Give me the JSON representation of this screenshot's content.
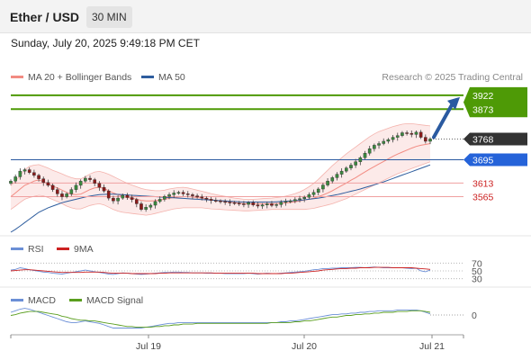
{
  "header": {
    "title": "Ether / USD",
    "timeframe": "30 MIN"
  },
  "datetime": "Sunday, July 20, 2025 9:49:18 PM CET",
  "legend_main": [
    {
      "label": "MA 20 + Bollinger Bands",
      "color": "#f28b82"
    },
    {
      "label": "MA 50",
      "color": "#2e5d9e"
    }
  ],
  "credit": "Research © 2025 Trading Central",
  "legend_rsi": [
    {
      "label": "RSI",
      "color": "#6b8fd6"
    },
    {
      "label": "9MA",
      "color": "#cc2222"
    }
  ],
  "legend_macd": [
    {
      "label": "MACD",
      "color": "#6b8fd6"
    },
    {
      "label": "MACD Signal",
      "color": "#5a9e1e"
    }
  ],
  "chart_data": {
    "type": "candlestick",
    "price_range": [
      3440,
      3950
    ],
    "x_ticks": [
      "Jul 19",
      "Jul 20",
      "Jul 21"
    ],
    "current_price": 3768,
    "levels": [
      {
        "value": 3922,
        "label": "3922",
        "kind": "resistance",
        "color": "#4e9a06"
      },
      {
        "value": 3873,
        "label": "3873",
        "kind": "resistance",
        "color": "#4e9a06"
      },
      {
        "value": 3768,
        "label": "3768",
        "kind": "last",
        "color": "#333333"
      },
      {
        "value": 3695,
        "label": "3695",
        "kind": "pivot",
        "color": "#2563d9"
      },
      {
        "value": 3613,
        "label": "3613",
        "kind": "support",
        "color": "#e06666"
      },
      {
        "value": 3565,
        "label": "3565",
        "kind": "support",
        "color": "#e06666"
      }
    ],
    "close": [
      3620,
      3635,
      3655,
      3660,
      3650,
      3640,
      3628,
      3615,
      3605,
      3590,
      3575,
      3565,
      3575,
      3590,
      3605,
      3620,
      3630,
      3625,
      3612,
      3598,
      3585,
      3560,
      3550,
      3560,
      3570,
      3562,
      3555,
      3540,
      3520,
      3528,
      3535,
      3548,
      3556,
      3566,
      3572,
      3578,
      3580,
      3575,
      3572,
      3568,
      3564,
      3560,
      3556,
      3552,
      3550,
      3548,
      3546,
      3544,
      3542,
      3540,
      3538,
      3544,
      3536,
      3532,
      3536,
      3540,
      3534,
      3537,
      3545,
      3548,
      3550,
      3555,
      3558,
      3563,
      3572,
      3580,
      3592,
      3606,
      3620,
      3632,
      3644,
      3655,
      3666,
      3676,
      3688,
      3702,
      3718,
      3734,
      3746,
      3752,
      3760,
      3766,
      3774,
      3780,
      3790,
      3788,
      3784,
      3792,
      3774,
      3760,
      3768
    ],
    "ma20": [
      3565,
      3578,
      3592,
      3605,
      3612,
      3620,
      3624,
      3618,
      3610,
      3602,
      3596,
      3588,
      3580,
      3574,
      3572,
      3574,
      3582,
      3590,
      3596,
      3598,
      3594,
      3586,
      3578,
      3572,
      3566,
      3562,
      3560,
      3556,
      3552,
      3550,
      3550,
      3551,
      3553,
      3556,
      3559,
      3562,
      3564,
      3565,
      3565,
      3564,
      3562,
      3560,
      3557,
      3554,
      3552,
      3550,
      3548,
      3546,
      3544,
      3542,
      3540,
      3540,
      3540,
      3540,
      3540,
      3540,
      3540,
      3541,
      3542,
      3543,
      3545,
      3547,
      3550,
      3553,
      3556,
      3560,
      3565,
      3571,
      3578,
      3586,
      3595,
      3604,
      3613,
      3623,
      3632,
      3642,
      3652,
      3662,
      3671,
      3680,
      3689,
      3698,
      3707,
      3715,
      3722,
      3729,
      3736,
      3742,
      3746,
      3749,
      3752
    ],
    "bb_upper": [
      3604,
      3620,
      3640,
      3660,
      3672,
      3676,
      3678,
      3672,
      3666,
      3658,
      3652,
      3645,
      3638,
      3632,
      3628,
      3628,
      3635,
      3645,
      3652,
      3654,
      3650,
      3644,
      3636,
      3628,
      3620,
      3612,
      3606,
      3600,
      3594,
      3590,
      3588,
      3586,
      3586,
      3588,
      3592,
      3595,
      3597,
      3598,
      3596,
      3592,
      3588,
      3584,
      3580,
      3576,
      3572,
      3569,
      3566,
      3563,
      3560,
      3558,
      3556,
      3556,
      3556,
      3557,
      3558,
      3559,
      3560,
      3562,
      3564,
      3567,
      3571,
      3576,
      3582,
      3590,
      3600,
      3612,
      3626,
      3642,
      3658,
      3674,
      3688,
      3702,
      3716,
      3728,
      3740,
      3752,
      3764,
      3776,
      3786,
      3794,
      3800,
      3806,
      3812,
      3816,
      3820,
      3822,
      3822,
      3820,
      3818,
      3816,
      3814
    ],
    "bb_lower": [
      3520,
      3532,
      3545,
      3556,
      3562,
      3566,
      3570,
      3568,
      3562,
      3555,
      3548,
      3540,
      3532,
      3526,
      3522,
      3522,
      3528,
      3534,
      3538,
      3540,
      3536,
      3528,
      3520,
      3514,
      3510,
      3508,
      3506,
      3504,
      3502,
      3500,
      3502,
      3506,
      3510,
      3514,
      3518,
      3522,
      3524,
      3526,
      3526,
      3526,
      3526,
      3526,
      3524,
      3522,
      3521,
      3520,
      3519,
      3518,
      3517,
      3516,
      3515,
      3515,
      3516,
      3517,
      3518,
      3519,
      3520,
      3520,
      3520,
      3520,
      3520,
      3520,
      3520,
      3520,
      3522,
      3524,
      3528,
      3532,
      3536,
      3540,
      3546,
      3552,
      3558,
      3566,
      3574,
      3582,
      3590,
      3598,
      3606,
      3614,
      3622,
      3630,
      3638,
      3646,
      3652,
      3658,
      3664,
      3670,
      3676,
      3682,
      3688
    ],
    "ma50": [
      3440,
      3450,
      3462,
      3474,
      3486,
      3498,
      3510,
      3518,
      3526,
      3532,
      3538,
      3544,
      3548,
      3552,
      3556,
      3560,
      3564,
      3567,
      3570,
      3572,
      3573,
      3574,
      3574,
      3573,
      3572,
      3571,
      3570,
      3569,
      3568,
      3567,
      3566,
      3565,
      3564,
      3563,
      3562,
      3561,
      3560,
      3559,
      3558,
      3557,
      3556,
      3555,
      3554,
      3553,
      3552,
      3551,
      3550,
      3549,
      3548,
      3547,
      3546,
      3546,
      3546,
      3546,
      3546,
      3546,
      3546,
      3547,
      3548,
      3549,
      3550,
      3551,
      3552,
      3554,
      3556,
      3558,
      3560,
      3563,
      3566,
      3569,
      3572,
      3576,
      3580,
      3584,
      3588,
      3592,
      3597,
      3602,
      3607,
      3612,
      3617,
      3623,
      3629,
      3635,
      3641,
      3647,
      3653,
      3659,
      3665,
      3671,
      3677
    ],
    "rsi": [
      52,
      54,
      58,
      56,
      53,
      51,
      49,
      47,
      46,
      44,
      43,
      42,
      44,
      46,
      48,
      50,
      52,
      50,
      48,
      46,
      44,
      42,
      41,
      43,
      45,
      44,
      43,
      42,
      41,
      42,
      43,
      44,
      45,
      46,
      46,
      47,
      47,
      46,
      46,
      45,
      45,
      45,
      44,
      44,
      44,
      44,
      43,
      43,
      43,
      43,
      43,
      44,
      43,
      42,
      43,
      44,
      43,
      43,
      44,
      45,
      46,
      47,
      48,
      49,
      51,
      53,
      54,
      56,
      56,
      57,
      57,
      58,
      58,
      58,
      59,
      59,
      58,
      59,
      60,
      59,
      58,
      58,
      58,
      58,
      58,
      57,
      56,
      57,
      50,
      48,
      52
    ],
    "rsi_ma": [
      50,
      51,
      52,
      53,
      53,
      52,
      51,
      50,
      49,
      48,
      47,
      46,
      46,
      46,
      46,
      46,
      47,
      47,
      47,
      47,
      46,
      45,
      44,
      44,
      44,
      44,
      43,
      43,
      43,
      43,
      43,
      43,
      44,
      44,
      45,
      45,
      45,
      45,
      45,
      45,
      45,
      45,
      45,
      45,
      44,
      44,
      44,
      44,
      44,
      44,
      44,
      44,
      44,
      43,
      43,
      43,
      43,
      43,
      43,
      44,
      44,
      45,
      46,
      47,
      48,
      49,
      50,
      52,
      53,
      54,
      55,
      56,
      56,
      57,
      57,
      58,
      58,
      58,
      59,
      59,
      59,
      59,
      58,
      58,
      58,
      58,
      58,
      57,
      56,
      55,
      54
    ],
    "rsi_levels": [
      70,
      50,
      30
    ],
    "macd": [
      8,
      10,
      12,
      13,
      12,
      10,
      8,
      6,
      4,
      2,
      0,
      -2,
      -4,
      -5,
      -5,
      -4,
      -3,
      -4,
      -5,
      -6,
      -8,
      -10,
      -12,
      -12,
      -12,
      -12,
      -12,
      -12,
      -12,
      -11,
      -10,
      -9,
      -8,
      -7,
      -6,
      -6,
      -5,
      -5,
      -5,
      -5,
      -5,
      -5,
      -5,
      -5,
      -5,
      -5,
      -5,
      -5,
      -5,
      -5,
      -5,
      -5,
      -5,
      -5,
      -5,
      -5,
      -5,
      -5,
      -4,
      -4,
      -3,
      -3,
      -2,
      -1,
      0,
      1,
      2,
      3,
      4,
      5,
      5,
      6,
      6,
      7,
      7,
      8,
      8,
      9,
      9,
      10,
      10,
      10,
      10,
      11,
      11,
      11,
      11,
      11,
      10,
      8,
      6
    ],
    "macd_signal": [
      4,
      5,
      7,
      8,
      9,
      9,
      9,
      8,
      7,
      6,
      5,
      3,
      2,
      0,
      -1,
      -2,
      -2,
      -3,
      -3,
      -4,
      -5,
      -6,
      -7,
      -8,
      -9,
      -10,
      -10,
      -11,
      -11,
      -11,
      -11,
      -10,
      -10,
      -9,
      -9,
      -8,
      -8,
      -7,
      -7,
      -7,
      -6,
      -6,
      -6,
      -6,
      -6,
      -6,
      -6,
      -6,
      -6,
      -6,
      -6,
      -6,
      -6,
      -6,
      -6,
      -6,
      -5,
      -5,
      -5,
      -5,
      -5,
      -4,
      -4,
      -3,
      -3,
      -2,
      -1,
      0,
      1,
      2,
      2,
      3,
      4,
      4,
      5,
      5,
      6,
      6,
      7,
      7,
      8,
      8,
      8,
      9,
      9,
      9,
      10,
      10,
      10,
      9,
      8
    ],
    "macd_zero_label": "0",
    "rsi_labels": [
      "70",
      "50",
      "30"
    ]
  }
}
